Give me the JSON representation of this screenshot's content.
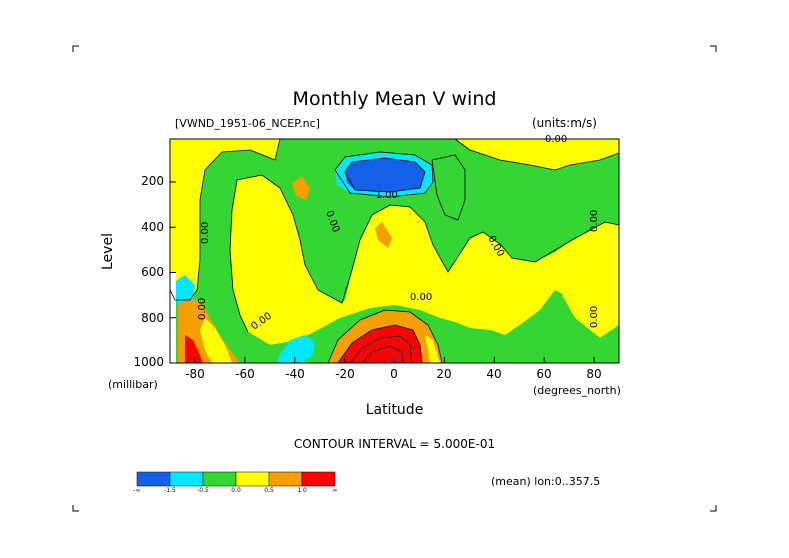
{
  "page": {
    "title": "Monthly Mean V wind",
    "file": "[VWND_1951-06_NCEP.nc]",
    "units": "(units:m/s)",
    "contour_interval": "CONTOUR INTERVAL = 5.000E-01",
    "mean": "(mean) lon:0..357.5"
  },
  "chart_data": {
    "type": "heatmap",
    "title": "Monthly Mean V wind",
    "xlabel": "Latitude",
    "ylabel": "Level",
    "x_unit": "(degrees_north)",
    "y_unit": "(millibar)",
    "xlim": [
      -90,
      90
    ],
    "ylim": [
      1000,
      10
    ],
    "x_ticks": [
      "-80",
      "-60",
      "-40",
      "-20",
      "0",
      "20",
      "40",
      "60",
      "80"
    ],
    "y_ticks": [
      "200",
      "400",
      "600",
      "800",
      "1000"
    ],
    "contour_labels": [
      "0.00",
      "-1.00",
      "0.00",
      "0.00",
      "0.00",
      "0.00",
      "0.00",
      "0.00",
      "0.00",
      "0.00"
    ],
    "colorbar": {
      "colors": [
        "#1560e8",
        "#00e8ff",
        "#33d633",
        "#ffff00",
        "#f5a000",
        "#ff0000"
      ],
      "tick_labels": [
        "-∞",
        "-1.5",
        "-0.5",
        "0.0",
        "0.5",
        "1.0",
        "∞"
      ]
    }
  }
}
